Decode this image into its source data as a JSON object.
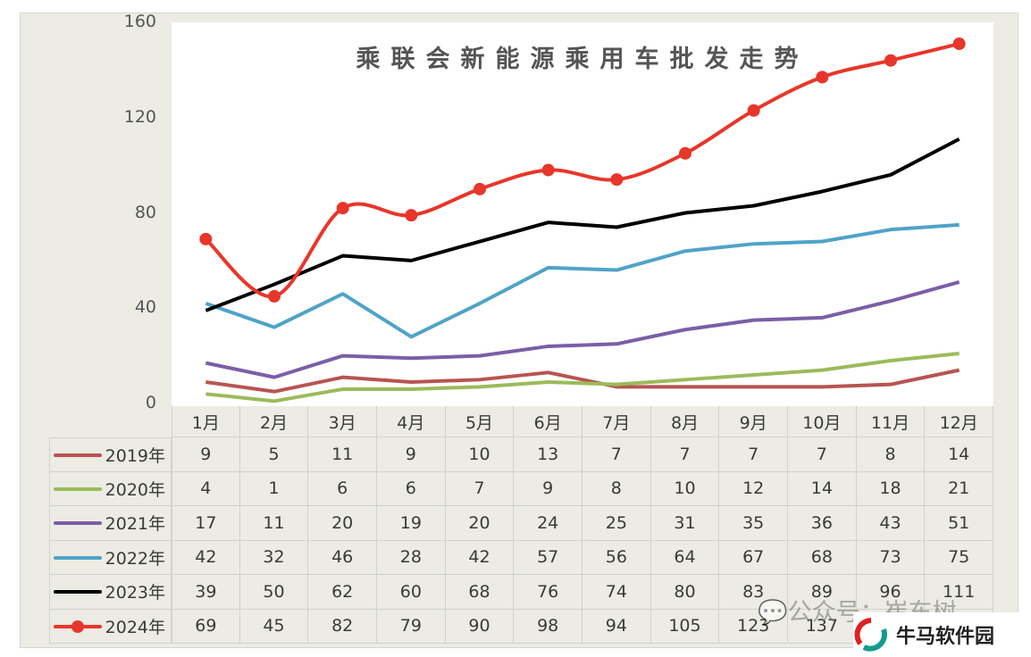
{
  "chart_data": {
    "type": "line",
    "title": "乘联会新能源乘用车批发走势",
    "categories": [
      "1月",
      "2月",
      "3月",
      "4月",
      "5月",
      "6月",
      "7月",
      "8月",
      "9月",
      "10月",
      "11月",
      "12月"
    ],
    "ylim": [
      0,
      160
    ],
    "yticks": [
      "0",
      "40",
      "80",
      "120",
      "160"
    ],
    "grid": false,
    "legend": "bottom data table",
    "series": [
      {
        "name": "2019年",
        "color": "#b85450",
        "values": [
          9,
          5,
          11,
          9,
          10,
          13,
          7,
          7,
          7,
          7,
          8,
          14
        ]
      },
      {
        "name": "2020年",
        "color": "#9bbb59",
        "values": [
          4,
          1,
          6,
          6,
          7,
          9,
          8,
          10,
          12,
          14,
          18,
          21
        ]
      },
      {
        "name": "2021年",
        "color": "#7b5ea7",
        "values": [
          17,
          11,
          20,
          19,
          20,
          24,
          25,
          31,
          35,
          36,
          43,
          51
        ]
      },
      {
        "name": "2022年",
        "color": "#4fa3c7",
        "values": [
          42,
          32,
          46,
          28,
          42,
          57,
          56,
          64,
          67,
          68,
          73,
          75
        ]
      },
      {
        "name": "2023年",
        "color": "#000000",
        "values": [
          39,
          50,
          62,
          60,
          68,
          76,
          74,
          80,
          83,
          89,
          96,
          111
        ]
      },
      {
        "name": "2024年",
        "color": "#e8362a",
        "markers": true,
        "smooth": true,
        "values": [
          69,
          45,
          82,
          79,
          90,
          98,
          94,
          105,
          123,
          137,
          144,
          151
        ]
      }
    ]
  },
  "watermark": "公众号：崔东树",
  "logo": "牛马软件园"
}
